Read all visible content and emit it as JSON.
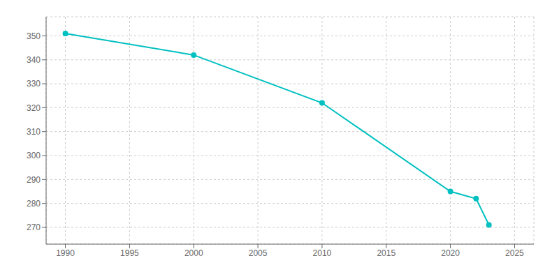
{
  "chart_data": {
    "type": "line",
    "x": [
      1990,
      2000,
      2010,
      2020,
      2022,
      2023
    ],
    "values": [
      351,
      342,
      322,
      285,
      282,
      271
    ],
    "color": "#00C0C0",
    "marker": "circle",
    "xlim": [
      1988.5,
      2026.5
    ],
    "ylim": [
      263,
      358
    ],
    "xticks": [
      1990,
      1995,
      2000,
      2005,
      2010,
      2015,
      2020,
      2025
    ],
    "yticks": [
      270,
      280,
      290,
      300,
      310,
      320,
      330,
      340,
      350
    ],
    "grid": true
  }
}
